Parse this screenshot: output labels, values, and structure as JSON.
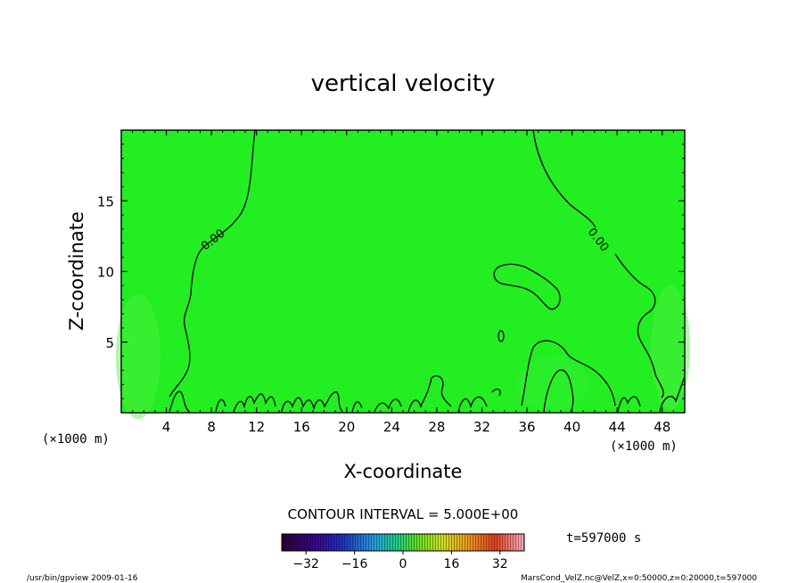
{
  "chart_data": {
    "type": "heatmap",
    "title": "vertical velocity",
    "xlabel": "X-coordinate",
    "ylabel": "Z-coordinate",
    "x_unit_label": "(×1000 m)",
    "y_unit_label": "(×1000 m)",
    "xlim": [
      0,
      50
    ],
    "ylim": [
      0,
      20
    ],
    "x_ticks": [
      4,
      8,
      12,
      16,
      20,
      24,
      28,
      32,
      36,
      40,
      44,
      48
    ],
    "y_ticks": [
      5,
      10,
      15
    ],
    "contour_labels": [
      {
        "text": "0.00",
        "x": 8.0,
        "z": 12.2
      },
      {
        "text": "0.00",
        "x": 42.5,
        "z": 12.2
      }
    ],
    "contour_interval_text": "CONTOUR INTERVAL = 5.000E+00",
    "time_text": "t=597000 s",
    "colorbar": {
      "range": [
        -40,
        40
      ],
      "ticks": [
        "-32",
        "-16",
        "0",
        "16",
        "32"
      ]
    },
    "field_color": "#22ee22",
    "grid": false
  },
  "footer": {
    "left": "/usr/bin/gpview  2009-01-16",
    "right": "MarsCond_VelZ.nc@VelZ,x=0:50000,z=0:20000,t=597000"
  }
}
